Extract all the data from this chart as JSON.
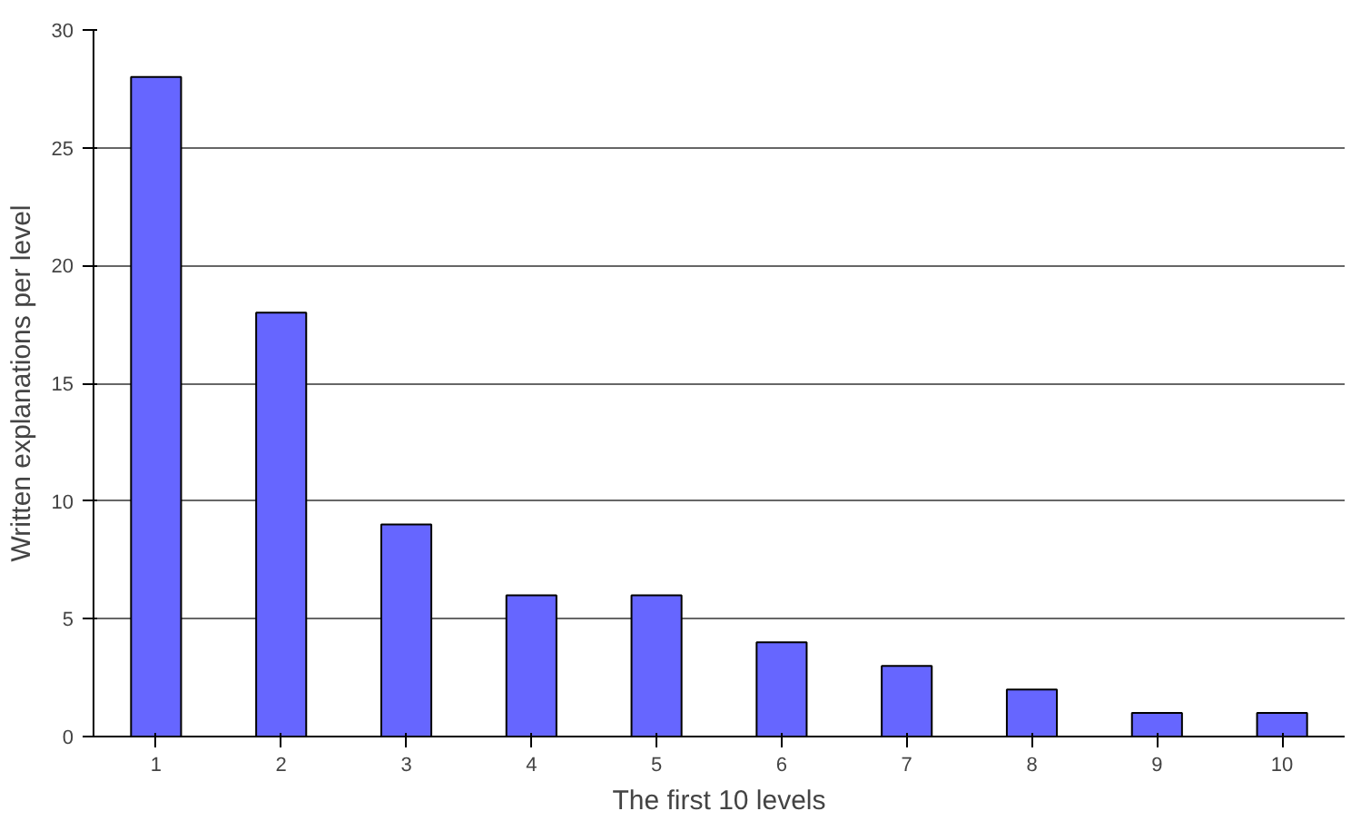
{
  "chart_data": {
    "type": "bar",
    "xlabel": "The first 10 levels",
    "ylabel": "Written explanations per level",
    "categories": [
      "1",
      "2",
      "3",
      "4",
      "5",
      "6",
      "7",
      "8",
      "9",
      "10"
    ],
    "values": [
      28,
      18,
      9,
      6,
      6,
      4,
      3,
      2,
      1,
      1
    ],
    "color": "#6666ff",
    "ylim": [
      0,
      30
    ],
    "yticks": [
      0,
      5,
      10,
      15,
      20,
      25,
      30
    ],
    "grid": "y"
  }
}
